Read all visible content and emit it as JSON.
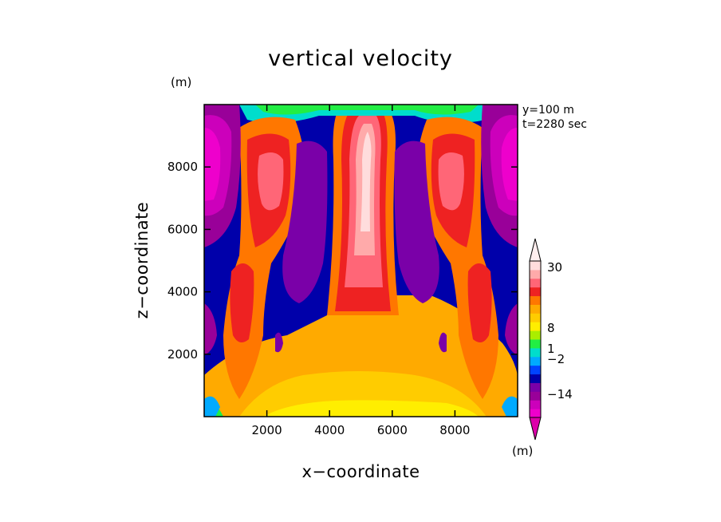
{
  "chart_data": {
    "type": "heatmap",
    "title": "vertical velocity",
    "xlabel": "x−coordinate",
    "ylabel": "z−coordinate",
    "axis_unit": "(m)",
    "colorbar_unit": "(m)",
    "annotations": [
      "y=100 m",
      "t=2280 sec"
    ],
    "xlim": [
      0,
      10000
    ],
    "ylim": [
      0,
      10000
    ],
    "xticks": [
      2000,
      4000,
      6000,
      8000
    ],
    "yticks": [
      2000,
      4000,
      6000,
      8000
    ],
    "xtick_labels": [
      "2000",
      "4000",
      "6000",
      "8000"
    ],
    "ytick_labels": [
      "2000",
      "4000",
      "6000",
      "8000"
    ],
    "colorbar": {
      "labels": [
        "30",
        "8",
        "1",
        "−2",
        "−14"
      ],
      "bands": [
        "#ee00cc",
        "#cc00bb",
        "#990099",
        "#7a00a8",
        "#0000aa",
        "#0044ff",
        "#00aaff",
        "#00ddcc",
        "#22ee44",
        "#aaee00",
        "#ffee00",
        "#ffcc00",
        "#ffaa00",
        "#ff7700",
        "#ee2222",
        "#ff6677",
        "#ffaaaa",
        "#ffdddd"
      ],
      "arrow_low": "#dd00aa",
      "arrow_high": "#ffeeee"
    }
  }
}
